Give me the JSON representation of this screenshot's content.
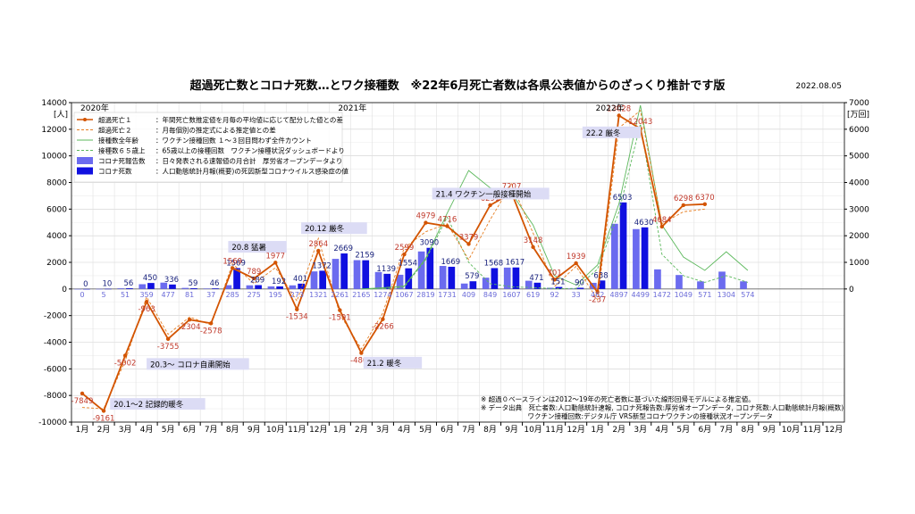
{
  "title": "超過死亡数とコロナ死数…とワク接種数　※22年6月死亡者数は各県公表値からのざっくり推計です版",
  "date": "2022.08.05",
  "left_unit": "[人]",
  "right_unit": "[万回]",
  "year_labels": [
    "2020年",
    "2021年",
    "2022年"
  ],
  "legend": [
    {
      "label": "超過死亡１",
      "desc": "：年間死亡数推定値を月毎の平均値に応じて配分した値との差",
      "color": "#d35400"
    },
    {
      "label": "超過死亡２",
      "desc": "：月毎個別の推定式による推定値との差",
      "color": "#e67e22"
    },
    {
      "label": "接種数全年齢",
      "desc": "：ワクチン接種回数 １〜３回目問わず全件カウント",
      "color": "#5cb85c"
    },
    {
      "label": "接種数６５歳上",
      "desc": "：65歳以上の接種回数　ワクチン接種状況ダッシュボードより",
      "color": "#5cb85c"
    },
    {
      "label": "コロナ死報告数",
      "desc": "：日々発表される速報値の月合計　厚労省オープンデータより",
      "color": "#6b6bef"
    },
    {
      "label": "コロナ死数",
      "desc": "：人口動態統計月報(概要)の死因新型コロナウイルス感染症の値",
      "color": "#1010e0"
    }
  ],
  "annotations": [
    {
      "text": "20.1〜2 記録的暖冬",
      "month": 1.8,
      "y": -8800
    },
    {
      "text": "20.3〜 コロナ自粛開始",
      "month": 3.5,
      "y": -5800
    },
    {
      "text": "20.8 猛暑",
      "month": 7.3,
      "y": 3000
    },
    {
      "text": "20.12 厳冬",
      "month": 10.7,
      "y": 4400
    },
    {
      "text": "21.4 ワクチン一般接種開始",
      "month": 16.8,
      "y": 7000
    },
    {
      "text": "21.2 暖冬",
      "month": 13.6,
      "y": -5700
    },
    {
      "text": "22.2 厳冬",
      "month": 23.8,
      "y": 11600
    }
  ],
  "notes": [
    "※ 超過０ベースラインは2012〜19年の死亡者数に基づいた線形回帰モデルによる推定値。",
    "※ データ出典　死亡者数:人口動態統計速報, コロナ死報告数:厚労省オープンデータ, コロナ死数:人口動態統計月報(概数)",
    "　　　　　　　ワクチン接種回数:デジタル庁 VRS新型コロナワクチンの接種状況オープンデータ"
  ],
  "chart_data": {
    "type": "bar",
    "x_labels": [
      "1月",
      "2月",
      "3月",
      "4月",
      "5月",
      "6月",
      "7月",
      "8月",
      "9月",
      "10月",
      "11月",
      "12月",
      "1月",
      "2月",
      "3月",
      "4月",
      "5月",
      "6月",
      "7月",
      "8月",
      "9月",
      "10月",
      "11月",
      "12月",
      "1月",
      "2月",
      "3月",
      "4月",
      "5月",
      "6月",
      "7月",
      "8月",
      "9月",
      "10月",
      "11月",
      "12月"
    ],
    "ylim": [
      -10000,
      14000
    ],
    "y2lim": [
      -5000,
      7000
    ],
    "yticks": [
      -10000,
      -8000,
      -6000,
      -4000,
      -2000,
      0,
      2000,
      4000,
      6000,
      8000,
      10000,
      12000,
      14000
    ],
    "y2ticks": [
      0,
      1000,
      2000,
      3000,
      4000,
      5000,
      6000,
      7000
    ],
    "grid": true,
    "series": [
      {
        "name": "コロナ死数",
        "kind": "bar",
        "axis": "left",
        "color": "#1010e0",
        "values": [
          0,
          10,
          56,
          450,
          336,
          59,
          46,
          1569,
          289,
          192,
          401,
          1372,
          2669,
          2159,
          1139,
          1554,
          3090,
          1669,
          579,
          1568,
          1617,
          471,
          151,
          90,
          638,
          6503,
          4630,
          null,
          null,
          null,
          null,
          null,
          null,
          null,
          null,
          null
        ]
      },
      {
        "name": "コロナ死報告数",
        "kind": "bar",
        "axis": "left",
        "color": "#6b6bef",
        "values": [
          0,
          5,
          51,
          359,
          477,
          81,
          37,
          285,
          275,
          195,
          273,
          1321,
          2261,
          2165,
          1274,
          1067,
          2819,
          1731,
          409,
          849,
          1607,
          619,
          92,
          33,
          462,
          4897,
          4499,
          1472,
          1049,
          571,
          1304,
          574,
          null,
          null,
          null,
          null
        ]
      },
      {
        "name": "超過死亡１",
        "kind": "line",
        "axis": "left",
        "color": "#d35400",
        "values": [
          -7849,
          -9161,
          -5002,
          -963,
          -3755,
          -2304,
          -2578,
          1569,
          789,
          1977,
          -1534,
          2864,
          -1591,
          -4807,
          -2266,
          2599,
          4979,
          4716,
          3379,
          6291,
          7207,
          3148,
          701,
          1939,
          -237,
          13028,
          12043,
          4684,
          6298,
          6370,
          null,
          null,
          null,
          null,
          null,
          null
        ]
      },
      {
        "name": "超過死亡２",
        "kind": "dashed",
        "axis": "left",
        "color": "#e67e22",
        "values": [
          -8900,
          -9000,
          -5400,
          -600,
          -3400,
          -2100,
          -2700,
          1900,
          400,
          1600,
          -900,
          3800,
          -1900,
          -4500,
          -1800,
          3100,
          4300,
          4900,
          2200,
          5200,
          7900,
          4200,
          200,
          1700,
          -800,
          12100,
          13400,
          4900,
          5800,
          6000,
          null,
          null,
          null,
          null,
          null,
          null
        ]
      },
      {
        "name": "接種数全年齢",
        "kind": "line",
        "axis": "right",
        "color": "#5cb85c",
        "values": [
          null,
          null,
          null,
          null,
          null,
          null,
          null,
          null,
          null,
          null,
          null,
          null,
          null,
          0,
          45,
          110,
          1150,
          2850,
          4450,
          3800,
          3600,
          2400,
          500,
          150,
          900,
          3200,
          6900,
          2400,
          1200,
          700,
          1400,
          700,
          null,
          null,
          null,
          null
        ]
      },
      {
        "name": "接種数６５歳上",
        "kind": "dashed",
        "axis": "right",
        "color": "#5cb85c",
        "values": [
          null,
          null,
          null,
          null,
          null,
          null,
          null,
          null,
          null,
          null,
          null,
          null,
          null,
          0,
          5,
          70,
          1100,
          2700,
          1000,
          200,
          80,
          50,
          10,
          20,
          750,
          2900,
          6200,
          1300,
          500,
          250,
          500,
          250,
          null,
          null,
          null,
          null
        ]
      }
    ]
  }
}
